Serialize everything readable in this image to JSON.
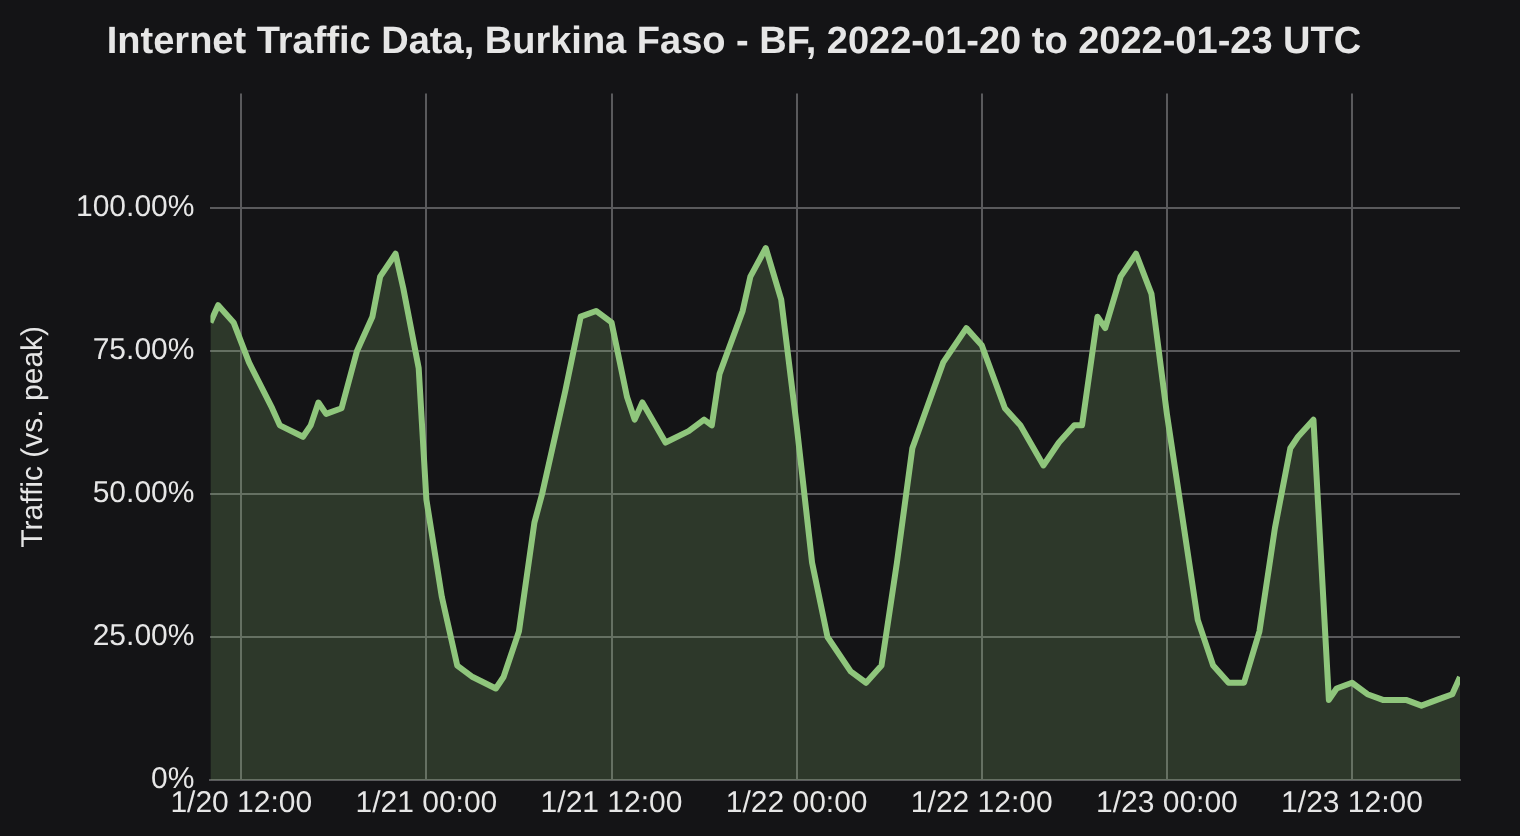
{
  "chart_data": {
    "type": "area",
    "title": "Internet Traffic Data, Burkina Faso - BF, 2022-01-20 to 2022-01-23 UTC",
    "ylabel": "Traffic (vs. peak)",
    "x": [
      "2022-01-20T10:00",
      "2022-01-20T10:30",
      "2022-01-20T11:30",
      "2022-01-20T12:30",
      "2022-01-20T14:00",
      "2022-01-20T14:30",
      "2022-01-20T16:00",
      "2022-01-20T16:30",
      "2022-01-20T17:00",
      "2022-01-20T17:30",
      "2022-01-20T18:30",
      "2022-01-20T19:30",
      "2022-01-20T20:30",
      "2022-01-20T21:00",
      "2022-01-20T22:00",
      "2022-01-20T22:30",
      "2022-01-20T23:30",
      "2022-01-21T00:00",
      "2022-01-21T01:00",
      "2022-01-21T02:00",
      "2022-01-21T03:00",
      "2022-01-21T04:30",
      "2022-01-21T05:00",
      "2022-01-21T06:00",
      "2022-01-21T07:00",
      "2022-01-21T07:30",
      "2022-01-21T09:00",
      "2022-01-21T10:00",
      "2022-01-21T11:00",
      "2022-01-21T12:00",
      "2022-01-21T13:00",
      "2022-01-21T13:30",
      "2022-01-21T14:00",
      "2022-01-21T15:30",
      "2022-01-21T17:00",
      "2022-01-21T18:00",
      "2022-01-21T18:30",
      "2022-01-21T19:00",
      "2022-01-21T20:30",
      "2022-01-21T21:00",
      "2022-01-21T22:00",
      "2022-01-21T23:00",
      "2022-01-22T00:00",
      "2022-01-22T01:00",
      "2022-01-22T02:00",
      "2022-01-22T03:30",
      "2022-01-22T04:30",
      "2022-01-22T05:30",
      "2022-01-22T06:30",
      "2022-01-22T07:30",
      "2022-01-22T09:30",
      "2022-01-22T11:00",
      "2022-01-22T12:00",
      "2022-01-22T13:30",
      "2022-01-22T14:30",
      "2022-01-22T16:00",
      "2022-01-22T17:00",
      "2022-01-22T18:00",
      "2022-01-22T18:30",
      "2022-01-22T19:30",
      "2022-01-22T20:00",
      "2022-01-22T21:00",
      "2022-01-22T22:00",
      "2022-01-22T23:00",
      "2022-01-23T00:00",
      "2022-01-23T02:00",
      "2022-01-23T03:00",
      "2022-01-23T04:00",
      "2022-01-23T05:00",
      "2022-01-23T06:00",
      "2022-01-23T07:00",
      "2022-01-23T08:00",
      "2022-01-23T08:30",
      "2022-01-23T09:30",
      "2022-01-23T10:30",
      "2022-01-23T11:00",
      "2022-01-23T12:00",
      "2022-01-23T13:00",
      "2022-01-23T14:00",
      "2022-01-23T15:30",
      "2022-01-23T16:30",
      "2022-01-23T17:30",
      "2022-01-23T18:30",
      "2022-01-23T19:00"
    ],
    "series": [
      {
        "color": "#8fc67c",
        "values": [
          80,
          83,
          80,
          73,
          65,
          62,
          60,
          62,
          66,
          64,
          65,
          75,
          81,
          88,
          92,
          86,
          72,
          49,
          32,
          20,
          18,
          16,
          18,
          26,
          45,
          50,
          68,
          81,
          82,
          80,
          67,
          63,
          66,
          59,
          61,
          63,
          62,
          71,
          82,
          88,
          93,
          84,
          62,
          38,
          25,
          19,
          17,
          20,
          38,
          58,
          73,
          79,
          76,
          65,
          62,
          55,
          59,
          62,
          62,
          81,
          79,
          88,
          92,
          85,
          64,
          28,
          20,
          17,
          17,
          26,
          44,
          58,
          60,
          63,
          14,
          16,
          17,
          15,
          14,
          14,
          13,
          14,
          15,
          18
        ]
      }
    ],
    "xlim": [
      "2022-01-20T10:00",
      "2022-01-23T19:00"
    ],
    "xticks": [
      {
        "value": "2022-01-20T12:00",
        "label": "1/20 12:00"
      },
      {
        "value": "2022-01-21T00:00",
        "label": "1/21 00:00"
      },
      {
        "value": "2022-01-21T12:00",
        "label": "1/21 12:00"
      },
      {
        "value": "2022-01-22T00:00",
        "label": "1/22 00:00"
      },
      {
        "value": "2022-01-22T12:00",
        "label": "1/22 12:00"
      },
      {
        "value": "2022-01-23T00:00",
        "label": "1/23 00:00"
      },
      {
        "value": "2022-01-23T12:00",
        "label": "1/23 12:00"
      }
    ],
    "ylim": [
      0,
      120
    ],
    "yticks": [
      {
        "value": 0,
        "label": "0%"
      },
      {
        "value": 25,
        "label": "25.00%"
      },
      {
        "value": 50,
        "label": "50.00%"
      },
      {
        "value": 75,
        "label": "75.00%"
      },
      {
        "value": 100,
        "label": "100.00%"
      }
    ],
    "grid": true,
    "legend": false,
    "marker": "none",
    "line_style": "solid"
  }
}
